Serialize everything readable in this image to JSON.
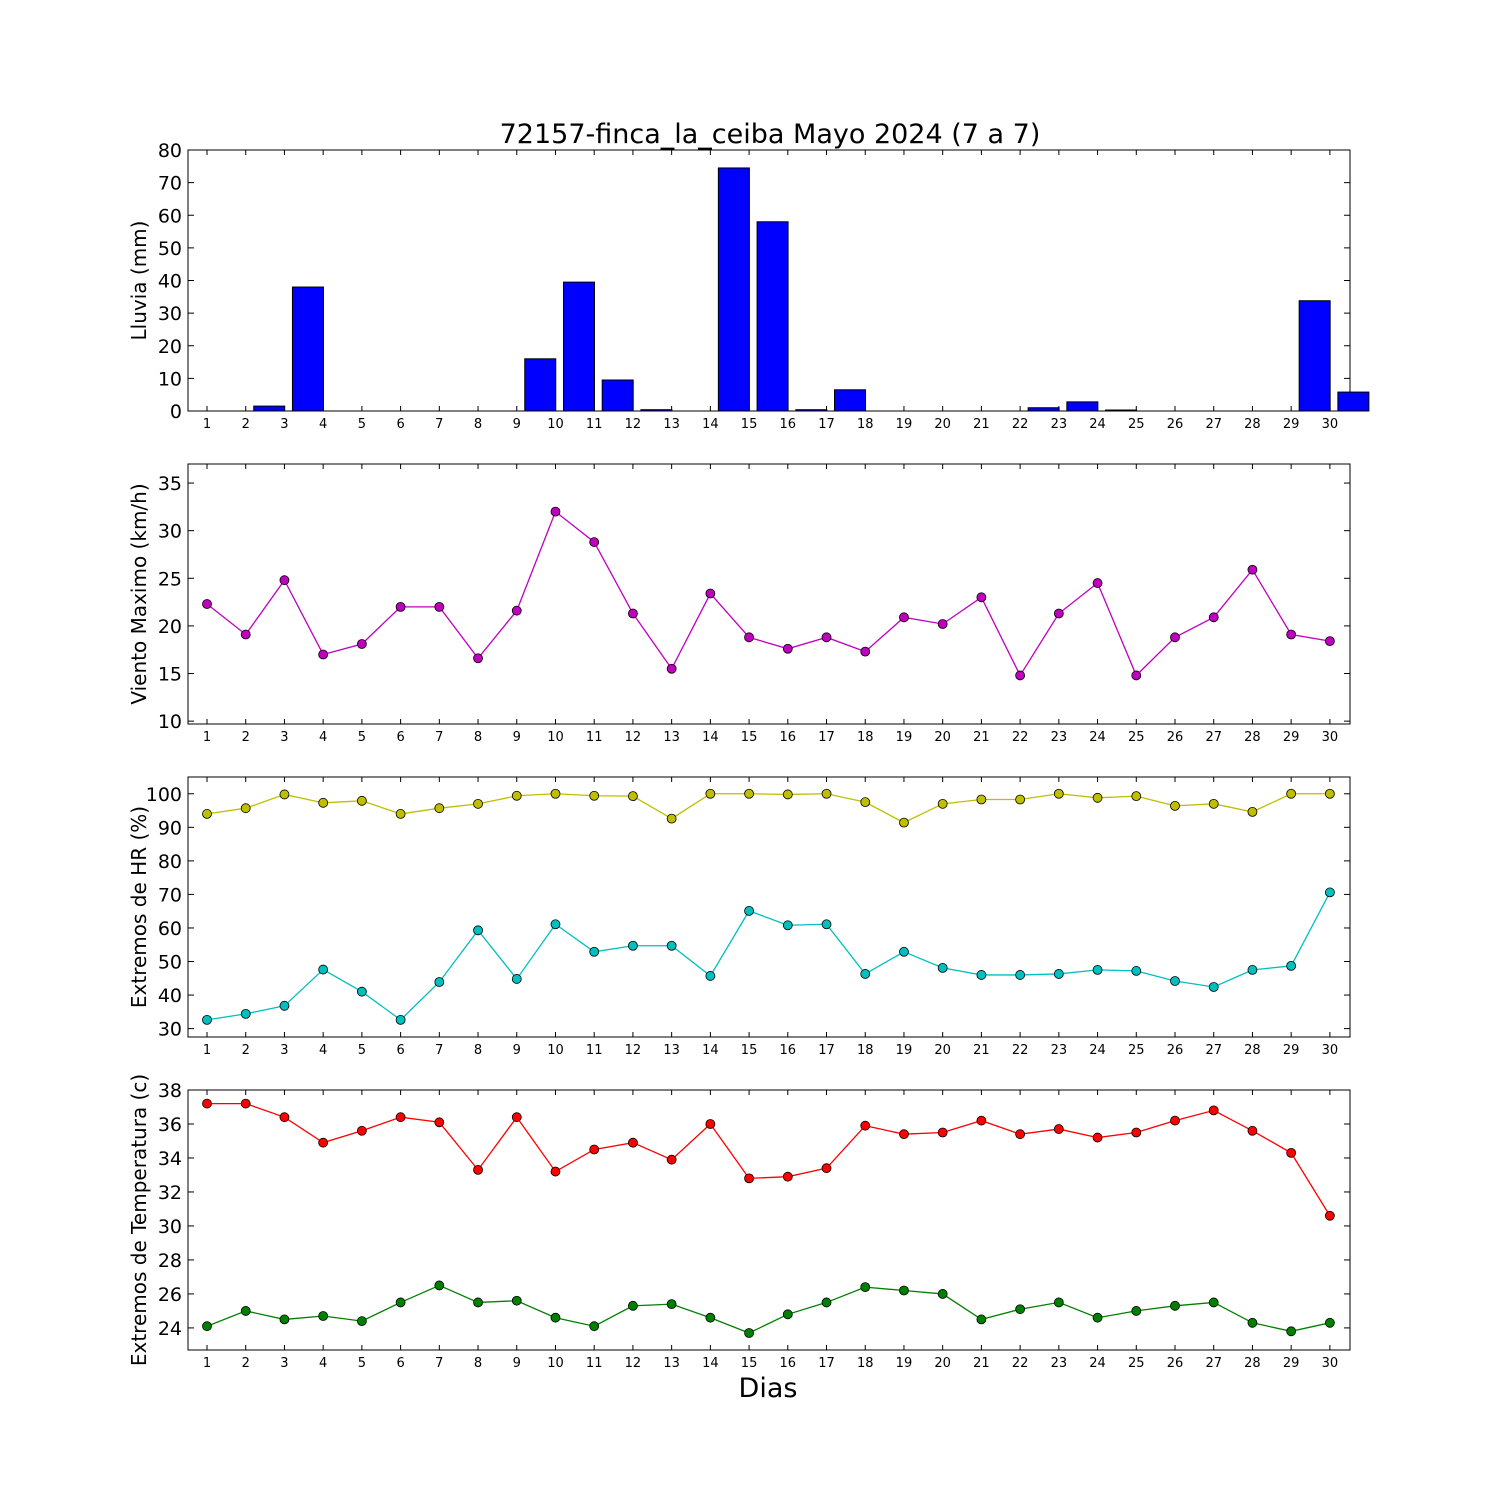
{
  "figure": {
    "title": "72157-finca_la_ceiba Mayo 2024  (7 a 7)",
    "xlabel": "Dias"
  },
  "chart_data": [
    {
      "type": "bar",
      "ylabel": "Lluvia (mm)",
      "ylim": [
        0,
        80
      ],
      "yticks": [
        0,
        10,
        20,
        30,
        40,
        50,
        60,
        70,
        80
      ],
      "categories": [
        "1",
        "2",
        "3",
        "4",
        "5",
        "6",
        "7",
        "8",
        "9",
        "10",
        "11",
        "12",
        "13",
        "14",
        "15",
        "16",
        "17",
        "18",
        "19",
        "20",
        "21",
        "22",
        "23",
        "24",
        "25",
        "26",
        "27",
        "28",
        "29",
        "30"
      ],
      "series": [
        {
          "color": "#0000ff",
          "values": [
            0,
            1.5,
            38,
            0,
            0,
            0,
            0,
            0,
            16,
            39.5,
            9.5,
            0.4,
            0,
            74.5,
            58,
            0.4,
            6.5,
            0,
            0,
            0,
            0,
            1,
            2.8,
            0.3,
            0,
            0,
            0,
            0,
            33.8,
            5.8
          ]
        }
      ]
    },
    {
      "type": "line",
      "ylabel": "Viento Maximo (km/h)",
      "ylim": [
        9.7,
        37
      ],
      "yticks": [
        10,
        15,
        20,
        25,
        30,
        35
      ],
      "categories": [
        "1",
        "2",
        "3",
        "4",
        "5",
        "6",
        "7",
        "8",
        "9",
        "10",
        "11",
        "12",
        "13",
        "14",
        "15",
        "16",
        "17",
        "18",
        "19",
        "20",
        "21",
        "22",
        "23",
        "24",
        "25",
        "26",
        "27",
        "28",
        "29",
        "30"
      ],
      "series": [
        {
          "color": "#bf00bf",
          "values": [
            22.3,
            19.1,
            24.8,
            17,
            18.1,
            22,
            22,
            16.6,
            21.6,
            32,
            28.8,
            21.3,
            15.5,
            23.4,
            18.8,
            17.6,
            18.8,
            17.3,
            20.9,
            20.2,
            23,
            14.8,
            21.3,
            24.5,
            14.8,
            18.8,
            20.9,
            25.9,
            19.1,
            18.4
          ]
        }
      ]
    },
    {
      "type": "line",
      "ylabel": "Extremos de HR (%)",
      "ylim": [
        27.5,
        105
      ],
      "yticks": [
        30,
        40,
        50,
        60,
        70,
        80,
        90,
        100
      ],
      "categories": [
        "1",
        "2",
        "3",
        "4",
        "5",
        "6",
        "7",
        "8",
        "9",
        "10",
        "11",
        "12",
        "13",
        "14",
        "15",
        "16",
        "17",
        "18",
        "19",
        "20",
        "21",
        "22",
        "23",
        "24",
        "25",
        "26",
        "27",
        "28",
        "29",
        "30"
      ],
      "series": [
        {
          "color": "#bfbf00",
          "values": [
            94,
            95.7,
            99.8,
            97.3,
            97.9,
            94,
            95.7,
            97,
            99.4,
            100,
            99.4,
            99.3,
            92.6,
            100,
            100,
            99.8,
            100,
            97.5,
            91.4,
            97,
            98.3,
            98.3,
            100,
            98.8,
            99.3,
            96.4,
            97,
            94.6,
            100,
            100
          ]
        },
        {
          "color": "#00bfbf",
          "values": [
            32.6,
            34.4,
            36.8,
            47.6,
            41,
            32.6,
            43.9,
            59.3,
            44.8,
            61.1,
            52.9,
            54.7,
            54.7,
            45.7,
            65.1,
            60.8,
            61.1,
            46.3,
            52.9,
            48.1,
            46,
            46,
            46.3,
            47.5,
            47.2,
            44.2,
            42.4,
            47.5,
            48.7,
            70.6
          ]
        }
      ]
    },
    {
      "type": "line",
      "ylabel": "Extremos de Temperatura (c)",
      "ylim": [
        22.7,
        38
      ],
      "yticks": [
        24,
        26,
        28,
        30,
        32,
        34,
        36,
        38
      ],
      "categories": [
        "1",
        "2",
        "3",
        "4",
        "5",
        "6",
        "7",
        "8",
        "9",
        "10",
        "11",
        "12",
        "13",
        "14",
        "15",
        "16",
        "17",
        "18",
        "19",
        "20",
        "21",
        "22",
        "23",
        "24",
        "25",
        "26",
        "27",
        "28",
        "29",
        "30"
      ],
      "series": [
        {
          "color": "#ff0000",
          "values": [
            37.2,
            37.2,
            36.4,
            34.9,
            35.6,
            36.4,
            36.1,
            33.3,
            36.4,
            33.2,
            34.5,
            34.9,
            33.9,
            36,
            32.8,
            32.9,
            33.4,
            35.9,
            35.4,
            35.5,
            36.2,
            35.4,
            35.7,
            35.2,
            35.5,
            36.2,
            36.8,
            35.6,
            34.3,
            30.6
          ]
        },
        {
          "color": "#008000",
          "values": [
            24.1,
            25,
            24.5,
            24.7,
            24.4,
            25.5,
            26.5,
            25.5,
            25.6,
            24.6,
            24.1,
            25.3,
            25.4,
            24.6,
            23.7,
            24.8,
            25.5,
            26.4,
            26.2,
            26,
            24.5,
            25.1,
            25.5,
            24.6,
            25,
            25.3,
            25.5,
            24.3,
            23.8,
            24.3
          ]
        }
      ]
    }
  ]
}
